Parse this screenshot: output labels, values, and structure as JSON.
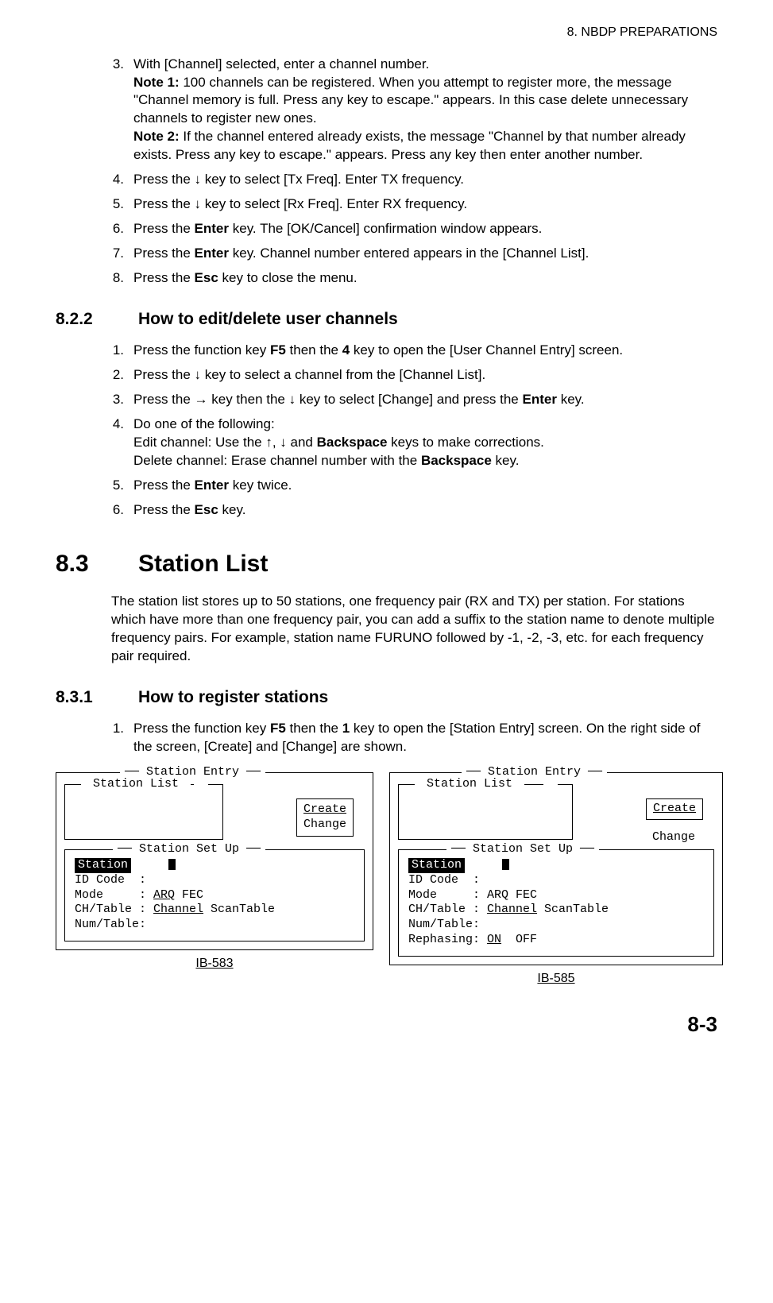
{
  "header": {
    "chapter": "8.  NBDP PREPARATIONS"
  },
  "topList": {
    "items": [
      {
        "num": "3.",
        "lines": [
          {
            "type": "plain",
            "text": "With [Channel] selected, enter a channel number."
          },
          {
            "type": "note",
            "lead": "Note 1: ",
            "text": "100 channels can be registered. When you attempt to register more, the message \"Channel memory is full. Press any key to escape.\" appears. In this case delete unnecessary channels to register new ones."
          },
          {
            "type": "note",
            "lead": "Note 2: ",
            "text": "If the channel entered already exists, the message \"Channel by that number already exists. Press any key to escape.\" appears. Press any key then enter another number."
          }
        ]
      },
      {
        "num": "4.",
        "lines": [
          {
            "type": "mixed",
            "parts": [
              "Press the ↓ key to select [Tx Freq]. Enter TX frequency."
            ]
          }
        ]
      },
      {
        "num": "5.",
        "lines": [
          {
            "type": "mixed",
            "parts": [
              "Press the ↓ key to select [Rx Freq]. Enter RX frequency."
            ]
          }
        ]
      },
      {
        "num": "6.",
        "lines": [
          {
            "type": "boldmix",
            "pre": "Press the ",
            "bold": "Enter",
            "post": " key. The [OK/Cancel] confirmation window appears."
          }
        ]
      },
      {
        "num": "7.",
        "lines": [
          {
            "type": "boldmix",
            "pre": "Press the ",
            "bold": "Enter",
            "post": " key. Channel number entered appears in the [Channel List]."
          }
        ]
      },
      {
        "num": "8.",
        "lines": [
          {
            "type": "boldmix",
            "pre": "Press the ",
            "bold": "Esc",
            "post": " key to close the menu."
          }
        ]
      }
    ]
  },
  "s822": {
    "num": "8.2.2",
    "title": "How to edit/delete user channels",
    "items": [
      {
        "num": "1.",
        "html": "Press the function key <b>F5</b> then the <b>4</b> key to open the [User Channel Entry] screen."
      },
      {
        "num": "2.",
        "html": "Press the ↓ key to select a channel from the [Channel List]."
      },
      {
        "num": "3.",
        "html": "Press the → key then the ↓ key to select [Change] and press the <b>Enter</b> key."
      },
      {
        "num": "4.",
        "html": "Do one of the following:<br>Edit channel: Use the ↑, ↓ and <b>Backspace</b> keys to make corrections.<br>Delete channel: Erase channel number with the <b>Backspace</b> key."
      },
      {
        "num": "5.",
        "html": "Press the <b>Enter</b> key twice."
      },
      {
        "num": "6.",
        "html": "Press the <b>Esc</b> key."
      }
    ]
  },
  "s83": {
    "num": "8.3",
    "title": "Station List",
    "intro": "The station list stores up to 50 stations, one frequency pair (RX and TX) per station. For stations which have more than one frequency pair, you can add a suffix to the station name to denote multiple frequency pairs. For example, station name FURUNO followed by -1, -2, -3, etc. for each frequency pair required."
  },
  "s831": {
    "num": "8.3.1",
    "title": "How to register stations",
    "items": [
      {
        "num": "1.",
        "html": "Press the function key <b>F5</b> then the <b>1</b> key to open the [Station Entry] screen. On the right side of the screen, [Create] and [Change] are shown."
      }
    ]
  },
  "figures": {
    "left": {
      "outerTitle": "Station Entry",
      "listTitle": " Station List ",
      "create": "Create",
      "change": "Change",
      "setupTitle": "Station Set Up",
      "rows": {
        "station": "Station",
        "id": "ID Code  :",
        "mode_label": "Mode     : ",
        "mode_u": "ARQ",
        "mode_rest": " FEC",
        "ch_label": "CH/Table : ",
        "ch_u": "Channel",
        "ch_rest": " ScanTable",
        "num": "Num/Table:"
      },
      "caption": "IB-583"
    },
    "right": {
      "outerTitle": "Station Entry",
      "listTitle": " Station List ",
      "create": "Create",
      "change": "Change",
      "setupTitle": "Station Set Up",
      "rows": {
        "station": "Station",
        "id": "ID Code  :",
        "mode": "Mode     : ARQ FEC",
        "ch_label": "CH/Table : ",
        "ch_u": "Channel",
        "ch_rest": " ScanTable",
        "num": "Num/Table:",
        "reph_label": "Rephasing: ",
        "reph_u": "ON",
        "reph_rest": "  OFF"
      },
      "caption": "IB-585"
    }
  },
  "pageNum": "8-3"
}
